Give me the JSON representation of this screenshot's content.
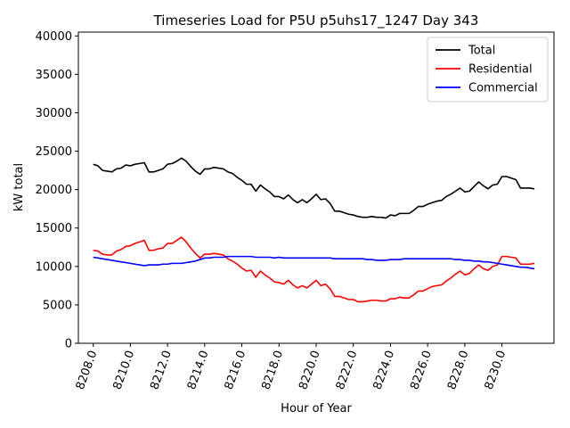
{
  "chart_data": {
    "type": "line",
    "title": "Timeseries Load for P5U p5uhs17_1247  Day 343",
    "xlabel": "Hour of Year",
    "ylabel": "kW total",
    "xlim": [
      8207.2,
      8232.8
    ],
    "ylim": [
      0,
      40500
    ],
    "x_ticks": [
      8208,
      8210,
      8212,
      8214,
      8216,
      8218,
      8220,
      8222,
      8224,
      8226,
      8228,
      8230
    ],
    "x_tick_labels": [
      "8208.0",
      "8210.0",
      "8212.0",
      "8214.0",
      "8216.0",
      "8218.0",
      "8220.0",
      "8222.0",
      "8224.0",
      "8226.0",
      "8228.0",
      "8230.0"
    ],
    "y_ticks": [
      0,
      5000,
      10000,
      15000,
      20000,
      25000,
      30000,
      35000,
      40000
    ],
    "y_tick_labels": [
      "0",
      "5000",
      "10000",
      "15000",
      "20000",
      "25000",
      "30000",
      "35000",
      "40000"
    ],
    "legend_position": "top-right",
    "x_start": 8208,
    "x_step": 0.25,
    "series": [
      {
        "name": "Total",
        "color": "#000000",
        "values": [
          23300,
          23100,
          22500,
          22400,
          22300,
          22700,
          22800,
          23200,
          23100,
          23300,
          23400,
          23500,
          22300,
          22300,
          22500,
          22700,
          23300,
          23400,
          23700,
          24100,
          23700,
          23000,
          22400,
          22000,
          22700,
          22700,
          22900,
          22800,
          22700,
          22300,
          22100,
          21600,
          21200,
          20700,
          20700,
          19800,
          20600,
          20100,
          19700,
          19100,
          19100,
          18800,
          19300,
          18700,
          18300,
          18700,
          18300,
          18800,
          19400,
          18700,
          18800,
          18200,
          17200,
          17200,
          17000,
          16800,
          16700,
          16500,
          16400,
          16400,
          16500,
          16400,
          16400,
          16300,
          16700,
          16600,
          16900,
          16900,
          16900,
          17300,
          17800,
          17800,
          18100,
          18300,
          18500,
          18600,
          19100,
          19400,
          19800,
          20200,
          19700,
          19800,
          20400,
          21000,
          20500,
          20100,
          20600,
          20700,
          21700,
          21700,
          21500,
          21300,
          20200,
          20200,
          20200,
          20100
        ]
      },
      {
        "name": "Residential",
        "color": "#ff0000",
        "values": [
          12100,
          12000,
          11600,
          11500,
          11500,
          12000,
          12200,
          12600,
          12700,
          13000,
          13200,
          13400,
          12100,
          12100,
          12300,
          12400,
          13000,
          13000,
          13400,
          13800,
          13200,
          12400,
          11700,
          11100,
          11600,
          11600,
          11700,
          11600,
          11500,
          11000,
          10700,
          10300,
          9800,
          9400,
          9500,
          8600,
          9400,
          8900,
          8500,
          8000,
          7900,
          7700,
          8200,
          7600,
          7200,
          7500,
          7200,
          7700,
          8200,
          7500,
          7700,
          7100,
          6100,
          6100,
          5900,
          5700,
          5700,
          5400,
          5400,
          5500,
          5600,
          5600,
          5500,
          5500,
          5800,
          5800,
          6000,
          5900,
          5900,
          6300,
          6800,
          6800,
          7100,
          7400,
          7500,
          7600,
          8100,
          8500,
          9000,
          9400,
          8900,
          9100,
          9700,
          10200,
          9700,
          9500,
          10000,
          10200,
          11300,
          11300,
          11200,
          11100,
          10300,
          10300,
          10300,
          10400
        ]
      },
      {
        "name": "Commercial",
        "color": "#0000ff",
        "values": [
          11200,
          11100,
          11000,
          10900,
          10800,
          10700,
          10600,
          10500,
          10400,
          10300,
          10200,
          10100,
          10200,
          10200,
          10200,
          10300,
          10300,
          10400,
          10400,
          10400,
          10500,
          10600,
          10700,
          10900,
          11100,
          11100,
          11200,
          11200,
          11200,
          11300,
          11300,
          11300,
          11300,
          11300,
          11300,
          11200,
          11200,
          11200,
          11200,
          11100,
          11200,
          11100,
          11100,
          11100,
          11100,
          11100,
          11100,
          11100,
          11100,
          11100,
          11100,
          11100,
          11000,
          11000,
          11000,
          11000,
          11000,
          11000,
          11000,
          10900,
          10900,
          10800,
          10800,
          10800,
          10900,
          10900,
          10900,
          11000,
          11000,
          11000,
          11000,
          11000,
          11000,
          11000,
          11000,
          11000,
          11000,
          11000,
          10900,
          10900,
          10800,
          10800,
          10700,
          10700,
          10600,
          10600,
          10500,
          10400,
          10300,
          10200,
          10100,
          10000,
          9900,
          9900,
          9800,
          9700
        ]
      }
    ]
  }
}
